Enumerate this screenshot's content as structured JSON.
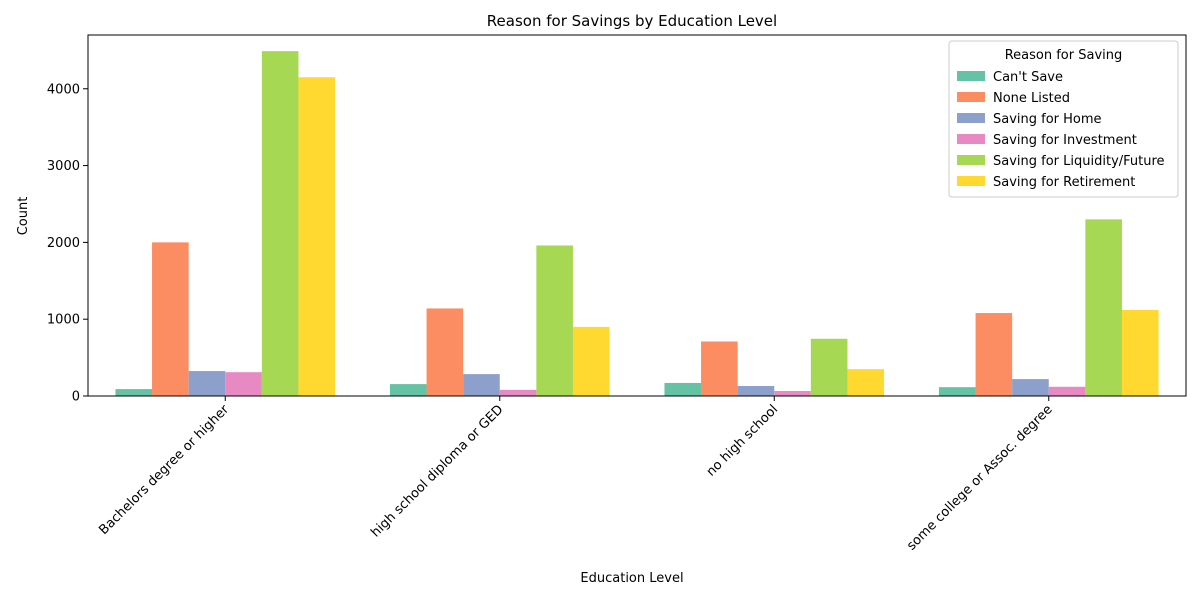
{
  "chart_data": {
    "type": "bar",
    "title": "Reason for Savings by Education Level",
    "xlabel": "Education Level",
    "ylabel": "Count",
    "ylim": [
      0,
      4700
    ],
    "yticks": [
      0,
      1000,
      2000,
      3000,
      4000
    ],
    "grid": false,
    "legend": {
      "title": "Reason for Saving",
      "placement": "top-right"
    },
    "categories": [
      "Bachelors degree or higher",
      "high school diploma or GED",
      "no high school",
      "some college or Assoc. degree"
    ],
    "series": [
      {
        "name": "Can't Save",
        "color": "#66c2a5",
        "values": [
          90,
          155,
          170,
          115
        ]
      },
      {
        "name": "None Listed",
        "color": "#fc8d62",
        "values": [
          2000,
          1140,
          710,
          1080
        ]
      },
      {
        "name": "Saving for Home",
        "color": "#8da0cb",
        "values": [
          325,
          285,
          130,
          220
        ]
      },
      {
        "name": "Saving for Investment",
        "color": "#e78ac3",
        "values": [
          310,
          80,
          65,
          120
        ]
      },
      {
        "name": "Saving for Liquidity/Future",
        "color": "#a6d854",
        "values": [
          4490,
          1960,
          745,
          2300
        ]
      },
      {
        "name": "Saving for Retirement",
        "color": "#ffd92f",
        "values": [
          4150,
          900,
          350,
          1120
        ]
      }
    ]
  }
}
